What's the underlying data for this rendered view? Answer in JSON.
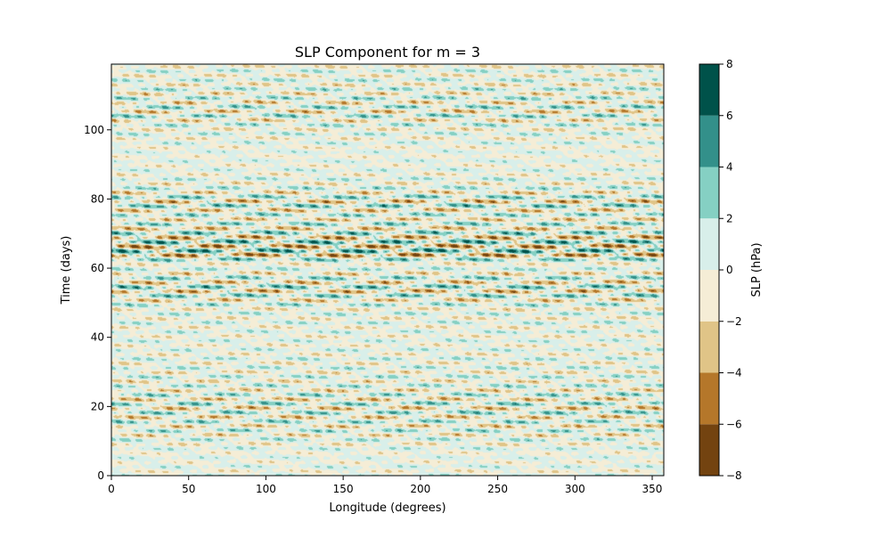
{
  "chart_data": {
    "type": "heatmap",
    "title": "SLP Component for m = 3",
    "xlabel": "Longitude (degrees)",
    "ylabel": "Time (days)",
    "xlim": [
      0,
      357.5
    ],
    "ylim": [
      0,
      119
    ],
    "xticks": [
      0,
      50,
      100,
      150,
      200,
      250,
      300,
      350
    ],
    "yticks": [
      0,
      20,
      40,
      60,
      80,
      100
    ],
    "colorbar": {
      "label": "SLP (hPa)",
      "levels": [
        -8,
        -6,
        -4,
        -2,
        0,
        2,
        4,
        6,
        8
      ],
      "tick_labels": [
        "−8",
        "−6",
        "−4",
        "−2",
        "0",
        "2",
        "4",
        "6",
        "8"
      ],
      "colors": [
        "#734310",
        "#b5772a",
        "#e0c487",
        "#f5edd6",
        "#d8efea",
        "#85d0c3",
        "#33908a",
        "#00524a"
      ]
    },
    "field_description": {
      "zonal_wavenumber": 3,
      "band_period_days": 2.6,
      "amplitude_envelope": [
        {
          "day": 0,
          "amp": 2.2
        },
        {
          "day": 6,
          "amp": 1.6
        },
        {
          "day": 12,
          "amp": 3.2
        },
        {
          "day": 20,
          "amp": 4.2
        },
        {
          "day": 26,
          "amp": 3.0
        },
        {
          "day": 32,
          "amp": 2.6
        },
        {
          "day": 38,
          "amp": 2.0
        },
        {
          "day": 44,
          "amp": 2.3
        },
        {
          "day": 48,
          "amp": 2.6
        },
        {
          "day": 54,
          "amp": 5.0
        },
        {
          "day": 58,
          "amp": 3.5
        },
        {
          "day": 61,
          "amp": 2.0
        },
        {
          "day": 64,
          "amp": 6.6
        },
        {
          "day": 67,
          "amp": 6.2
        },
        {
          "day": 71,
          "amp": 4.2
        },
        {
          "day": 75,
          "amp": 3.4
        },
        {
          "day": 79,
          "amp": 4.8
        },
        {
          "day": 83,
          "amp": 3.0
        },
        {
          "day": 88,
          "amp": 2.0
        },
        {
          "day": 93,
          "amp": 1.6
        },
        {
          "day": 100,
          "amp": 2.6
        },
        {
          "day": 105,
          "amp": 4.0
        },
        {
          "day": 110,
          "amp": 3.2
        },
        {
          "day": 115,
          "amp": 2.6
        },
        {
          "day": 119,
          "amp": 2.4
        }
      ]
    }
  }
}
